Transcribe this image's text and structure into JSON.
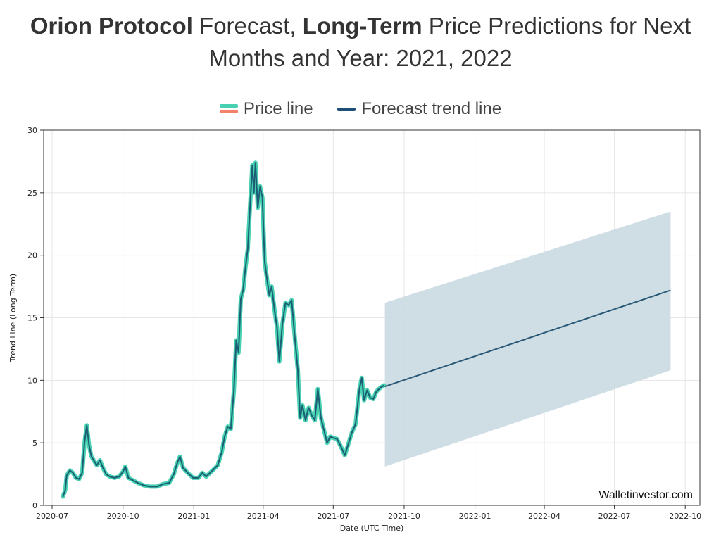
{
  "title": {
    "part1_bold": "Orion Protocol",
    "part2": " Forecast, ",
    "part3_bold": "Long-Term",
    "part4": " Price Predictions for Next",
    "line2": "Months and Year: 2021, 2022"
  },
  "legend": [
    {
      "label": "Price line",
      "colors": [
        "#48d1b0",
        "#f4836b"
      ]
    },
    {
      "label": "Forecast trend line",
      "colors": [
        "#1f4e79"
      ]
    }
  ],
  "watermark": "Walletinvestor.com",
  "chart_data": {
    "type": "line",
    "xlabel": "Date (UTC Time)",
    "ylabel": "Trend Line (Long Term)",
    "ylim": [
      0,
      30
    ],
    "xlim": [
      "2020-06-20",
      "2022-10-20"
    ],
    "yticks": [
      0,
      5,
      10,
      15,
      20,
      25,
      30
    ],
    "xticks": [
      "2020-07",
      "2020-10",
      "2021-01",
      "2021-04",
      "2021-07",
      "2021-10",
      "2022-01",
      "2022-04",
      "2022-07",
      "2022-10"
    ],
    "grid": true,
    "colors": {
      "price_outer": "#48d1b0",
      "price_inner": "#1b5e75",
      "trend": "#2a5a78",
      "band": "#ccdbe3"
    },
    "series": [
      {
        "name": "Price line",
        "points": [
          [
            "2020-07-15",
            0.7
          ],
          [
            "2020-07-18",
            1.2
          ],
          [
            "2020-07-20",
            2.4
          ],
          [
            "2020-07-24",
            2.8
          ],
          [
            "2020-07-28",
            2.6
          ],
          [
            "2020-08-01",
            2.2
          ],
          [
            "2020-08-05",
            2.1
          ],
          [
            "2020-08-09",
            2.6
          ],
          [
            "2020-08-12",
            5.0
          ],
          [
            "2020-08-15",
            6.4
          ],
          [
            "2020-08-18",
            4.8
          ],
          [
            "2020-08-21",
            3.9
          ],
          [
            "2020-08-25",
            3.5
          ],
          [
            "2020-08-28",
            3.2
          ],
          [
            "2020-09-01",
            3.6
          ],
          [
            "2020-09-05",
            3.0
          ],
          [
            "2020-09-09",
            2.5
          ],
          [
            "2020-09-14",
            2.3
          ],
          [
            "2020-09-20",
            2.2
          ],
          [
            "2020-09-26",
            2.3
          ],
          [
            "2020-10-01",
            2.7
          ],
          [
            "2020-10-04",
            3.1
          ],
          [
            "2020-10-08",
            2.2
          ],
          [
            "2020-10-14",
            2.0
          ],
          [
            "2020-10-20",
            1.8
          ],
          [
            "2020-10-28",
            1.6
          ],
          [
            "2020-11-05",
            1.5
          ],
          [
            "2020-11-14",
            1.5
          ],
          [
            "2020-11-22",
            1.7
          ],
          [
            "2020-11-30",
            1.8
          ],
          [
            "2020-12-06",
            2.5
          ],
          [
            "2020-12-10",
            3.3
          ],
          [
            "2020-12-14",
            3.9
          ],
          [
            "2020-12-18",
            3.0
          ],
          [
            "2020-12-24",
            2.6
          ],
          [
            "2020-12-31",
            2.2
          ],
          [
            "2021-01-07",
            2.2
          ],
          [
            "2021-01-12",
            2.6
          ],
          [
            "2021-01-17",
            2.3
          ],
          [
            "2021-01-22",
            2.6
          ],
          [
            "2021-01-27",
            2.9
          ],
          [
            "2021-02-01",
            3.2
          ],
          [
            "2021-02-06",
            4.2
          ],
          [
            "2021-02-10",
            5.5
          ],
          [
            "2021-02-14",
            6.3
          ],
          [
            "2021-02-18",
            6.1
          ],
          [
            "2021-02-22",
            9.2
          ],
          [
            "2021-02-25",
            13.2
          ],
          [
            "2021-02-28",
            12.2
          ],
          [
            "2021-03-03",
            16.5
          ],
          [
            "2021-03-06",
            17.2
          ],
          [
            "2021-03-09",
            19.0
          ],
          [
            "2021-03-12",
            20.5
          ],
          [
            "2021-03-15",
            24.0
          ],
          [
            "2021-03-18",
            27.2
          ],
          [
            "2021-03-20",
            25.0
          ],
          [
            "2021-03-22",
            27.4
          ],
          [
            "2021-03-25",
            23.8
          ],
          [
            "2021-03-28",
            25.5
          ],
          [
            "2021-03-31",
            24.6
          ],
          [
            "2021-04-03",
            19.5
          ],
          [
            "2021-04-06",
            18.1
          ],
          [
            "2021-04-09",
            16.8
          ],
          [
            "2021-04-12",
            17.5
          ],
          [
            "2021-04-16",
            15.5
          ],
          [
            "2021-04-19",
            14.2
          ],
          [
            "2021-04-22",
            11.5
          ],
          [
            "2021-04-26",
            14.5
          ],
          [
            "2021-04-30",
            16.2
          ],
          [
            "2021-05-04",
            16.0
          ],
          [
            "2021-05-08",
            16.4
          ],
          [
            "2021-05-12",
            13.5
          ],
          [
            "2021-05-16",
            10.8
          ],
          [
            "2021-05-19",
            7.0
          ],
          [
            "2021-05-22",
            8.0
          ],
          [
            "2021-05-26",
            6.8
          ],
          [
            "2021-05-30",
            7.8
          ],
          [
            "2021-06-03",
            7.2
          ],
          [
            "2021-06-07",
            6.8
          ],
          [
            "2021-06-11",
            9.3
          ],
          [
            "2021-06-15",
            7.0
          ],
          [
            "2021-06-19",
            6.0
          ],
          [
            "2021-06-23",
            5.0
          ],
          [
            "2021-06-27",
            5.5
          ],
          [
            "2021-07-01",
            5.4
          ],
          [
            "2021-07-06",
            5.3
          ],
          [
            "2021-07-11",
            4.7
          ],
          [
            "2021-07-16",
            4.0
          ],
          [
            "2021-07-20",
            4.8
          ],
          [
            "2021-07-25",
            5.8
          ],
          [
            "2021-07-30",
            6.5
          ],
          [
            "2021-08-04",
            9.3
          ],
          [
            "2021-08-07",
            10.2
          ],
          [
            "2021-08-10",
            8.4
          ],
          [
            "2021-08-14",
            9.2
          ],
          [
            "2021-08-18",
            8.6
          ],
          [
            "2021-08-22",
            8.5
          ],
          [
            "2021-08-26",
            9.1
          ],
          [
            "2021-08-31",
            9.4
          ],
          [
            "2021-09-05",
            9.6
          ]
        ]
      },
      {
        "name": "Forecast trend line",
        "points": [
          [
            "2021-09-06",
            9.5
          ],
          [
            "2022-09-12",
            17.2
          ]
        ],
        "band_upper": [
          [
            "2021-09-06",
            16.2
          ],
          [
            "2022-09-12",
            23.5
          ]
        ],
        "band_lower": [
          [
            "2021-09-06",
            3.1
          ],
          [
            "2022-09-12",
            10.8
          ]
        ]
      }
    ]
  }
}
